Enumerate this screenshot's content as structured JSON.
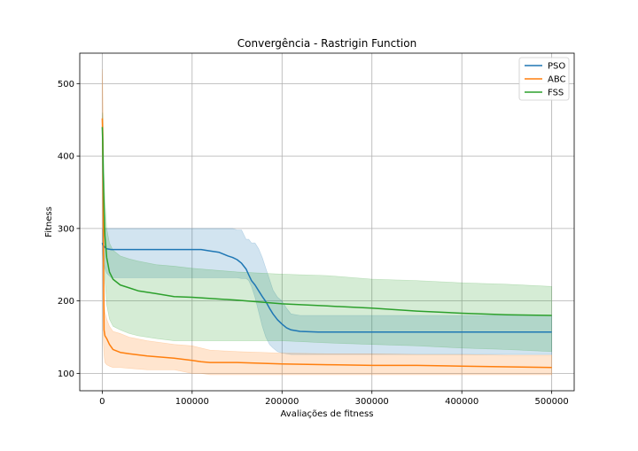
{
  "chart_data": {
    "type": "line",
    "title": "Convergência - Rastrigin Function",
    "xlabel": "Avaliações de fitness",
    "ylabel": "Fitness",
    "xlim": [
      -25000,
      525000
    ],
    "ylim": [
      76,
      542
    ],
    "xticks": [
      0,
      100000,
      200000,
      300000,
      400000,
      500000
    ],
    "xtick_labels": [
      "0",
      "100000",
      "200000",
      "300000",
      "400000",
      "500000"
    ],
    "yticks": [
      100,
      200,
      300,
      400,
      500
    ],
    "ytick_labels": [
      "100",
      "200",
      "300",
      "400",
      "500"
    ],
    "grid": true,
    "legend_position": "top-right",
    "series": [
      {
        "name": "PSO",
        "color": "#1f77b4",
        "x": [
          0,
          1000,
          3000,
          5000,
          10000,
          50000,
          100000,
          110000,
          120000,
          130000,
          140000,
          145000,
          150000,
          155000,
          160000,
          163000,
          166000,
          170000,
          174000,
          178000,
          182000,
          186000,
          190000,
          195000,
          200000,
          205000,
          210000,
          220000,
          240000,
          300000,
          400000,
          500000
        ],
        "mean": [
          280,
          277,
          274,
          272,
          271,
          271,
          271,
          271,
          269,
          267,
          262,
          260,
          257,
          252,
          244,
          236,
          228,
          222,
          214,
          206,
          199,
          190,
          182,
          174,
          168,
          163,
          160,
          158,
          157,
          157,
          157,
          157
        ],
        "lower": [
          270,
          255,
          245,
          238,
          232,
          232,
          232,
          232,
          232,
          232,
          232,
          232,
          232,
          231,
          231,
          228,
          220,
          205,
          185,
          165,
          150,
          140,
          135,
          130,
          128,
          127,
          126,
          126,
          126,
          126,
          126,
          126
        ],
        "upper": [
          300,
          300,
          300,
          300,
          300,
          300,
          300,
          300,
          300,
          300,
          300,
          300,
          298,
          298,
          285,
          285,
          280,
          280,
          272,
          260,
          245,
          230,
          215,
          205,
          200,
          190,
          182,
          180,
          180,
          180,
          180,
          180
        ]
      },
      {
        "name": "ABC",
        "color": "#ff7f0e",
        "x": [
          0,
          500,
          1000,
          2000,
          3000,
          5000,
          8000,
          12000,
          20000,
          30000,
          50000,
          80000,
          100000,
          110000,
          120000,
          150000,
          200000,
          250000,
          300000,
          350000,
          400000,
          450000,
          500000
        ],
        "mean": [
          452,
          430,
          350,
          160,
          152,
          148,
          140,
          133,
          129,
          127,
          124,
          121,
          118,
          116,
          115,
          115,
          113,
          112,
          111,
          111,
          110,
          109,
          108
        ],
        "lower": [
          440,
          330,
          150,
          125,
          115,
          112,
          110,
          108,
          108,
          107,
          105,
          105,
          100,
          100,
          98,
          98,
          98,
          98,
          98,
          98,
          98,
          98,
          98
        ],
        "upper": [
          520,
          500,
          460,
          200,
          185,
          175,
          165,
          158,
          155,
          150,
          145,
          140,
          138,
          135,
          132,
          130,
          128,
          127,
          127,
          126,
          126,
          125,
          125
        ]
      },
      {
        "name": "FSS",
        "color": "#2ca02c",
        "x": [
          0,
          500,
          1000,
          2000,
          3000,
          5000,
          8000,
          12000,
          20000,
          30000,
          40000,
          60000,
          80000,
          100000,
          150000,
          200000,
          250000,
          300000,
          350000,
          400000,
          450000,
          500000
        ],
        "mean": [
          440,
          420,
          380,
          330,
          290,
          260,
          240,
          230,
          222,
          218,
          214,
          210,
          206,
          205,
          201,
          196,
          193,
          190,
          186,
          183,
          181,
          180
        ],
        "lower": [
          440,
          400,
          320,
          260,
          230,
          195,
          175,
          165,
          160,
          155,
          152,
          148,
          145,
          145,
          145,
          145,
          142,
          140,
          138,
          135,
          133,
          130
        ],
        "upper": [
          440,
          460,
          440,
          380,
          340,
          300,
          280,
          270,
          262,
          258,
          255,
          250,
          248,
          245,
          240,
          237,
          235,
          230,
          228,
          225,
          223,
          220
        ]
      }
    ]
  }
}
